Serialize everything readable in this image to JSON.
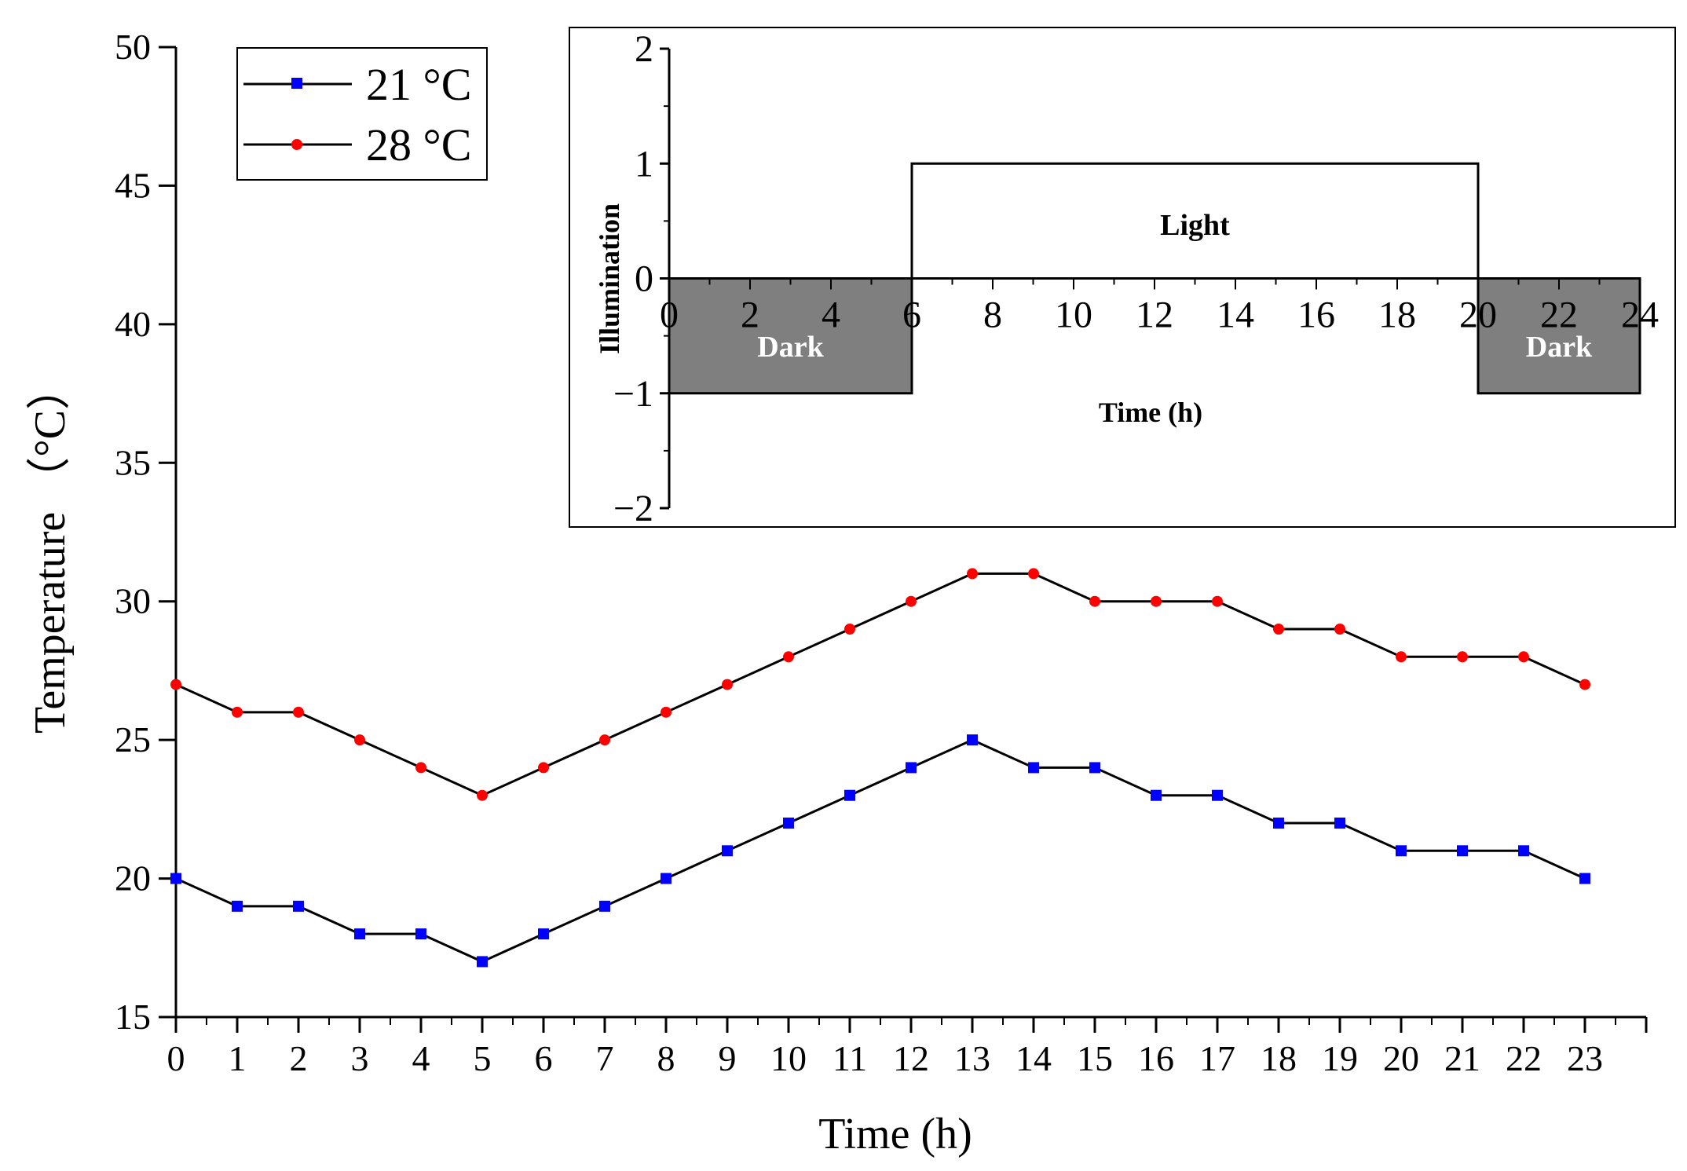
{
  "chart_data": [
    {
      "type": "line",
      "xlabel": "Time (h)",
      "ylabel": "Temperature （°C）",
      "x": [
        0,
        1,
        2,
        3,
        4,
        5,
        6,
        7,
        8,
        9,
        10,
        11,
        12,
        13,
        14,
        15,
        16,
        17,
        18,
        19,
        20,
        21,
        22,
        23
      ],
      "xlim": [
        0,
        24
      ],
      "ylim": [
        15,
        50
      ],
      "yticks": [
        15,
        20,
        25,
        30,
        35,
        40,
        45,
        50
      ],
      "grid": false,
      "legend_position": "top-left",
      "series": [
        {
          "name": "21 °C",
          "color": "#0000ff",
          "line_color": "#000000",
          "marker": "square",
          "values": [
            20,
            19,
            19,
            18,
            18,
            17,
            18,
            19,
            20,
            21,
            22,
            23,
            24,
            25,
            24,
            24,
            23,
            23,
            22,
            22,
            21,
            21,
            21,
            20
          ]
        },
        {
          "name": "28 °C",
          "color": "#ff0000",
          "line_color": "#000000",
          "marker": "circle",
          "values": [
            27,
            26,
            26,
            25,
            24,
            23,
            24,
            25,
            26,
            27,
            28,
            29,
            30,
            31,
            31,
            30,
            30,
            30,
            29,
            29,
            28,
            28,
            28,
            27
          ]
        }
      ]
    },
    {
      "type": "area",
      "position": "inset top-right",
      "xlabel": "Time (h)",
      "ylabel": "Illumination",
      "xlim": [
        0,
        24
      ],
      "ylim": [
        -2,
        2
      ],
      "xticks": [
        0,
        2,
        4,
        6,
        8,
        10,
        12,
        14,
        16,
        18,
        20,
        22,
        24
      ],
      "yticks": [
        -2,
        -1,
        0,
        1,
        2
      ],
      "segments": [
        {
          "label": "Dark",
          "start": 0,
          "end": 6,
          "value": -1,
          "fill": "#7f7f7f"
        },
        {
          "label": "Light",
          "start": 6,
          "end": 20,
          "value": 1,
          "fill": "#ffffff"
        },
        {
          "label": "Dark",
          "start": 20,
          "end": 24,
          "value": -1,
          "fill": "#7f7f7f"
        }
      ]
    }
  ]
}
